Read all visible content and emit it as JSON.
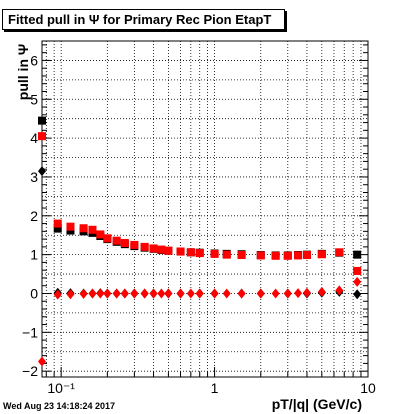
{
  "chart_data": {
    "type": "scatter",
    "title": "Fitted pull in Ψ  for Primary Rec Pion EtapT",
    "xlabel": "pT/|q| (GeV/c)",
    "ylabel": "pull in  Ψ",
    "x_scale": "log",
    "xlim": [
      0.075,
      10
    ],
    "ylim": [
      -2.15,
      6.5
    ],
    "grid": true,
    "x_ticks": [
      {
        "value": 0.1,
        "label": "10⁻¹"
      },
      {
        "value": 1,
        "label": "1"
      },
      {
        "value": 10,
        "label": "10"
      }
    ],
    "y_ticks": [
      -2,
      -1,
      0,
      1,
      2,
      3,
      4,
      5,
      6
    ],
    "series": [
      {
        "color": "#000000",
        "marker": "square",
        "x": [
          0.075,
          0.095,
          0.115,
          0.14,
          0.16,
          0.18,
          0.2,
          0.23,
          0.26,
          0.3,
          0.35,
          0.4,
          0.45,
          0.5,
          0.6,
          0.7,
          0.8,
          1.0,
          1.2,
          1.5,
          2.0,
          2.5,
          3.0,
          3.5,
          4.0,
          5.0,
          6.5,
          8.5
        ],
        "y": [
          4.45,
          1.67,
          1.62,
          1.6,
          1.56,
          1.48,
          1.4,
          1.33,
          1.27,
          1.22,
          1.18,
          1.15,
          1.12,
          1.1,
          1.08,
          1.06,
          1.05,
          1.03,
          1.02,
          1.01,
          0.99,
          0.98,
          0.98,
          0.99,
          1.0,
          1.02,
          1.05,
          1.0
        ]
      },
      {
        "color": "#ff0000",
        "marker": "square",
        "x": [
          0.075,
          0.095,
          0.115,
          0.14,
          0.16,
          0.18,
          0.2,
          0.23,
          0.26,
          0.3,
          0.35,
          0.4,
          0.45,
          0.5,
          0.6,
          0.7,
          0.8,
          1.0,
          1.2,
          1.5,
          2.0,
          2.5,
          3.0,
          3.5,
          4.0,
          5.0,
          6.5,
          8.5
        ],
        "y": [
          4.05,
          1.8,
          1.72,
          1.68,
          1.64,
          1.52,
          1.42,
          1.36,
          1.3,
          1.25,
          1.2,
          1.16,
          1.13,
          1.1,
          1.08,
          1.06,
          1.04,
          1.02,
          1.0,
          0.99,
          0.98,
          0.97,
          0.97,
          0.98,
          0.99,
          1.01,
          1.06,
          0.58
        ]
      },
      {
        "color": "#000000",
        "marker": "diamond",
        "x": [
          0.075,
          0.095,
          0.115,
          0.14,
          0.16,
          0.18,
          0.2,
          0.23,
          0.26,
          0.3,
          0.35,
          0.4,
          0.5,
          0.6,
          0.8,
          1.0,
          1.5,
          2.0,
          3.0,
          4.0,
          5.0,
          6.5,
          8.5
        ],
        "y": [
          3.15,
          0.02,
          0.01,
          0.0,
          0.0,
          0.01,
          0.0,
          0.0,
          0.0,
          0.0,
          0.0,
          0.0,
          0.0,
          0.0,
          0.0,
          0.0,
          0.0,
          0.0,
          0.0,
          0.0,
          0.02,
          0.04,
          -0.02
        ]
      },
      {
        "color": "#ff0000",
        "marker": "diamond",
        "x": [
          0.075,
          0.095,
          0.115,
          0.14,
          0.16,
          0.18,
          0.2,
          0.23,
          0.26,
          0.3,
          0.35,
          0.4,
          0.45,
          0.5,
          0.6,
          0.7,
          0.8,
          1.0,
          1.2,
          1.5,
          2.0,
          2.5,
          3.0,
          3.5,
          4.0,
          5.0,
          6.5,
          8.5
        ],
        "y": [
          -1.75,
          -0.03,
          -0.02,
          -0.01,
          0.0,
          0.0,
          0.0,
          0.0,
          0.0,
          0.0,
          0.0,
          0.0,
          0.0,
          0.0,
          0.0,
          0.0,
          0.0,
          0.0,
          0.0,
          0.0,
          0.0,
          0.0,
          0.0,
          0.01,
          0.02,
          0.04,
          0.08,
          0.3
        ]
      }
    ]
  },
  "footer": "Wed Aug 23 14:18:24 2017"
}
